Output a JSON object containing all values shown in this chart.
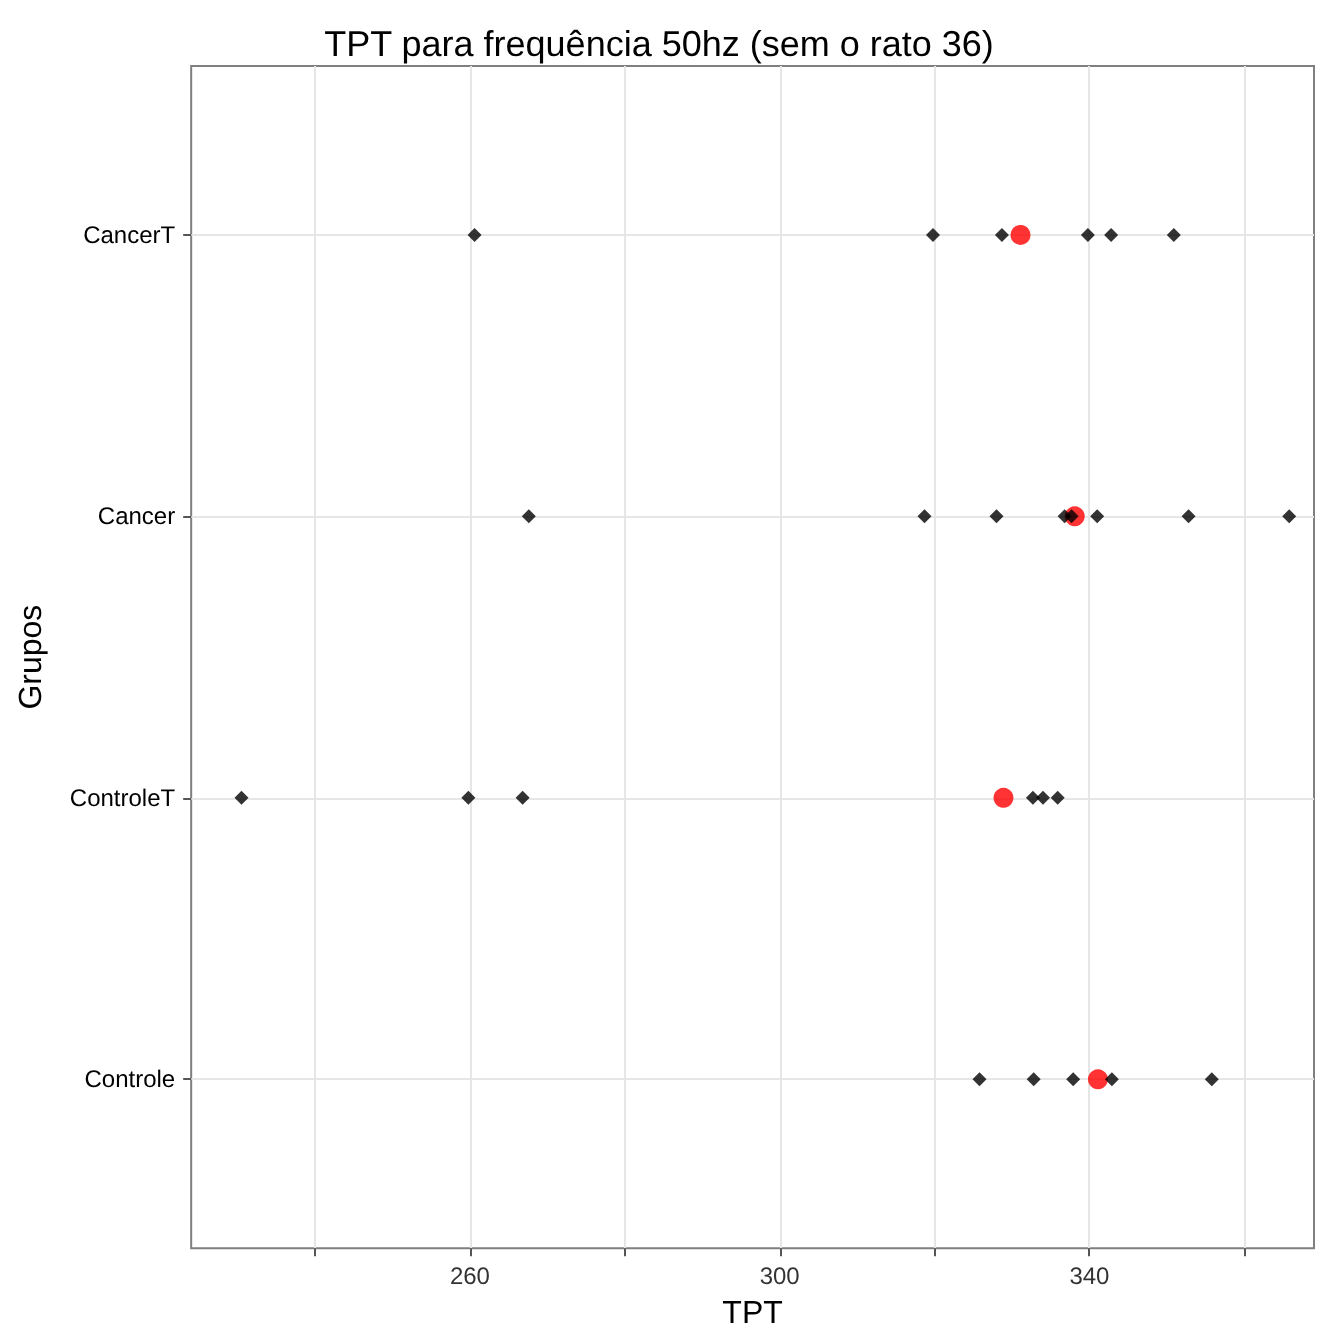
{
  "chart_data": {
    "type": "scatter",
    "title": "TPT para frequência 50hz (sem o rato 36)",
    "xlabel": "TPT",
    "ylabel": "Grupos",
    "orientation": "horizontal",
    "categories": [
      "CancerT",
      "Cancer",
      "ControleT",
      "Controle"
    ],
    "xlim": [
      224,
      369
    ],
    "xticks": [
      {
        "value": 240,
        "label": null
      },
      260,
      {
        "value": 280,
        "label": null
      },
      300,
      {
        "value": 320,
        "label": null
      },
      340,
      {
        "value": 360,
        "label": null
      }
    ],
    "grid": true,
    "marker": "diamond",
    "series": [
      {
        "color": "#000000",
        "values": [
          260.6,
          267.6,
          230.5,
          325.8
        ]
      },
      {
        "color": "#000000",
        "values": [
          319.8,
          318.7,
          259.8,
          332.8
        ]
      },
      {
        "color": "#000000",
        "values": [
          328.7,
          328.0,
          266.8,
          337.9
        ]
      },
      {
        "color": "#000000",
        "values": [
          339.8,
          336.8,
          332.7,
          342.9
        ]
      },
      {
        "color": "#000000",
        "values": [
          342.8,
          337.7,
          334.0,
          355.8
        ]
      },
      {
        "color": "#000000",
        "values": [
          350.9,
          341.0,
          335.9,
          null
        ]
      },
      {
        "color": "#000000",
        "values": [
          null,
          352.8,
          null,
          null
        ]
      },
      {
        "color": "#000000",
        "values": [
          null,
          365.8,
          null,
          null
        ]
      },
      {
        "color": "#ff0000",
        "marker": "circle",
        "values": [
          331.1,
          338.1,
          328.9,
          341.1
        ]
      }
    ]
  }
}
